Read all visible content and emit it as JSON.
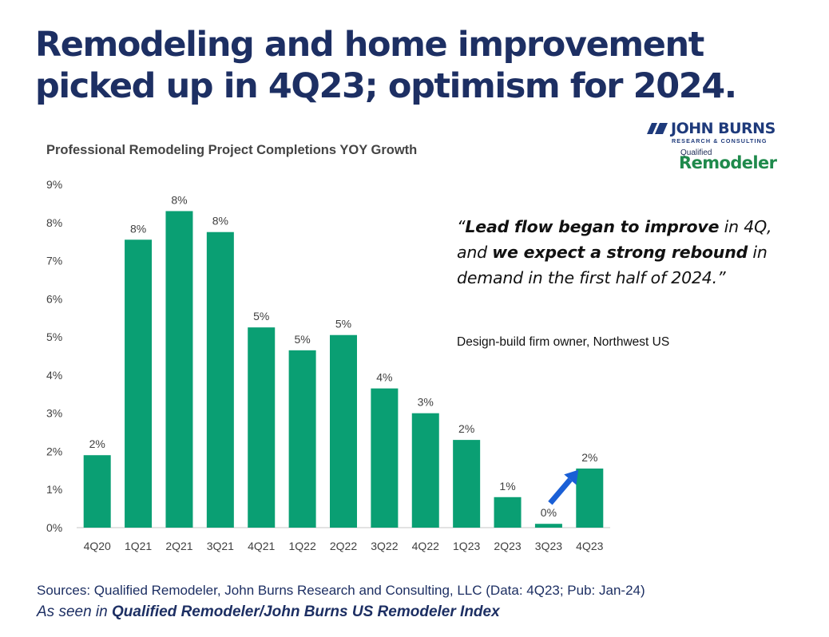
{
  "headline": {
    "line1": "Remodeling and home improvement",
    "line2": "picked up in 4Q23; optimism for 2024."
  },
  "logos": {
    "jbrec_name": "JOHN BURNS",
    "jbrec_sub": "RESEARCH & CONSULTING",
    "qr_top": "Qualified",
    "qr_main": "Remodeler"
  },
  "quote": {
    "open": "“",
    "part1_bold": "Lead flow began to improve",
    "part2": " in 4Q, and ",
    "part3_bold": "we expect a strong rebound",
    "part4": " in demand in the first half of 2024.",
    "close": "”",
    "attribution": "Design-build firm owner, Northwest US"
  },
  "footer": {
    "sources": "Sources: Qualified Remodeler, John Burns Research and Consulting, LLC (Data: 4Q23; Pub: Jan-24)",
    "seen_prefix": "As seen in ",
    "seen_bold": "Qualified Remodeler/John Burns US Remodeler Index"
  },
  "colors": {
    "bar": "#0a9f73",
    "arrow": "#1a5fd6",
    "axis": "#d0d0d0",
    "label": "#404040"
  },
  "chart_data": {
    "type": "bar",
    "title": "Professional Remodeling Project Completions YOY Growth",
    "categories": [
      "4Q20",
      "1Q21",
      "2Q21",
      "3Q21",
      "4Q21",
      "1Q22",
      "2Q22",
      "3Q22",
      "4Q22",
      "1Q23",
      "2Q23",
      "3Q23",
      "4Q23"
    ],
    "values": [
      1.9,
      7.55,
      8.3,
      7.75,
      5.25,
      4.65,
      5.05,
      3.65,
      3.0,
      2.3,
      0.8,
      0.1,
      1.55
    ],
    "data_labels": [
      "2%",
      "8%",
      "8%",
      "8%",
      "5%",
      "5%",
      "5%",
      "4%",
      "3%",
      "2%",
      "1%",
      "0%",
      "2%"
    ],
    "y_ticks": [
      "0%",
      "1%",
      "2%",
      "3%",
      "4%",
      "5%",
      "6%",
      "7%",
      "8%",
      "9%"
    ],
    "ylim": [
      0,
      9
    ],
    "grid": false,
    "legend": "none",
    "annotation": "up-arrow-between-3Q23-and-4Q23"
  }
}
